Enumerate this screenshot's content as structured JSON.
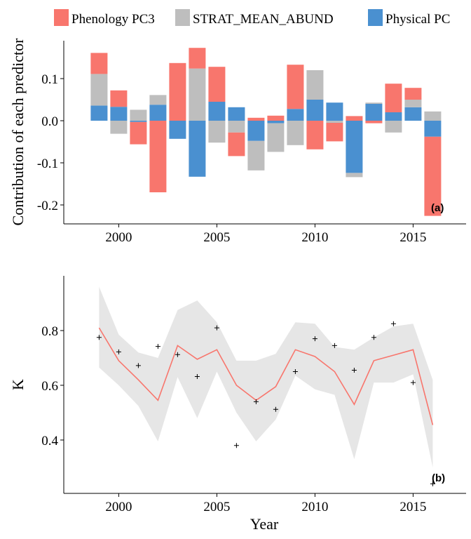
{
  "chart_data": [
    {
      "type": "bar",
      "stacked": true,
      "ylabel": "Contribution of each predictor",
      "xlabel": "",
      "panel_label": "(a)",
      "xlim": [
        1997.2,
        2017.7
      ],
      "ylim": [
        -0.245,
        0.19
      ],
      "x_ticks": [
        2000,
        2005,
        2010,
        2015
      ],
      "y_ticks": [
        -0.2,
        -0.1,
        0.0,
        0.1
      ],
      "y_tick_labels": [
        "-0.2",
        "-0.1",
        "0.0",
        "0.1"
      ],
      "legend": {
        "position": "top"
      },
      "series": [
        {
          "name": "Phenology PC3",
          "color": "#F8766D"
        },
        {
          "name": "STRAT_MEAN_ABUND",
          "color": "#BEBEBE"
        },
        {
          "name": "Physical PC",
          "color": "#4A90D0"
        }
      ],
      "years": [
        1999,
        2000,
        2001,
        2002,
        2003,
        2004,
        2005,
        2006,
        2007,
        2008,
        2009,
        2010,
        2011,
        2012,
        2013,
        2014,
        2015,
        2016
      ],
      "segments": [
        [
          [
            0,
            0.036,
            "Physical PC"
          ],
          [
            0.036,
            0.111,
            "STRAT_MEAN_ABUND"
          ],
          [
            0.111,
            0.161,
            "Phenology PC3"
          ]
        ],
        [
          [
            0,
            0.033,
            "Physical PC"
          ],
          [
            0.033,
            0.072,
            "Phenology PC3"
          ],
          [
            0,
            -0.031,
            "STRAT_MEAN_ABUND"
          ]
        ],
        [
          [
            0,
            0.026,
            "STRAT_MEAN_ABUND"
          ],
          [
            0,
            -0.003,
            "Physical PC"
          ],
          [
            -0.003,
            -0.056,
            "Phenology PC3"
          ]
        ],
        [
          [
            0,
            0.038,
            "Physical PC"
          ],
          [
            0.038,
            0.061,
            "STRAT_MEAN_ABUND"
          ],
          [
            0,
            -0.17,
            "Phenology PC3"
          ]
        ],
        [
          [
            0,
            0.137,
            "Phenology PC3"
          ],
          [
            0,
            -0.043,
            "Physical PC"
          ]
        ],
        [
          [
            0,
            0.124,
            "STRAT_MEAN_ABUND"
          ],
          [
            0.124,
            0.173,
            "Phenology PC3"
          ],
          [
            0,
            -0.133,
            "Physical PC"
          ]
        ],
        [
          [
            0,
            0.045,
            "Physical PC"
          ],
          [
            0.045,
            0.128,
            "Phenology PC3"
          ],
          [
            0,
            -0.052,
            "STRAT_MEAN_ABUND"
          ]
        ],
        [
          [
            0,
            0.032,
            "Physical PC"
          ],
          [
            0,
            -0.028,
            "STRAT_MEAN_ABUND"
          ],
          [
            -0.028,
            -0.084,
            "Phenology PC3"
          ]
        ],
        [
          [
            0,
            0.007,
            "Phenology PC3"
          ],
          [
            0,
            -0.048,
            "Physical PC"
          ],
          [
            -0.048,
            -0.118,
            "STRAT_MEAN_ABUND"
          ]
        ],
        [
          [
            0,
            0.012,
            "Phenology PC3"
          ],
          [
            0,
            -0.006,
            "Physical PC"
          ],
          [
            -0.006,
            -0.074,
            "STRAT_MEAN_ABUND"
          ]
        ],
        [
          [
            0,
            0.028,
            "Physical PC"
          ],
          [
            0.028,
            0.133,
            "Phenology PC3"
          ],
          [
            0,
            -0.058,
            "STRAT_MEAN_ABUND"
          ]
        ],
        [
          [
            0,
            0.05,
            "Physical PC"
          ],
          [
            0.05,
            0.12,
            "STRAT_MEAN_ABUND"
          ],
          [
            0,
            -0.068,
            "Phenology PC3"
          ]
        ],
        [
          [
            0,
            0.043,
            "Physical PC"
          ],
          [
            0,
            -0.005,
            "STRAT_MEAN_ABUND"
          ],
          [
            -0.005,
            -0.049,
            "Phenology PC3"
          ]
        ],
        [
          [
            0,
            0.011,
            "Phenology PC3"
          ],
          [
            0,
            -0.124,
            "Physical PC"
          ],
          [
            -0.124,
            -0.134,
            "STRAT_MEAN_ABUND"
          ]
        ],
        [
          [
            0,
            0.04,
            "Physical PC"
          ],
          [
            0.04,
            0.043,
            "STRAT_MEAN_ABUND"
          ],
          [
            0,
            -0.006,
            "Phenology PC3"
          ]
        ],
        [
          [
            0,
            0.02,
            "Physical PC"
          ],
          [
            0.02,
            0.088,
            "Phenology PC3"
          ],
          [
            0,
            -0.028,
            "STRAT_MEAN_ABUND"
          ]
        ],
        [
          [
            0,
            0.032,
            "Physical PC"
          ],
          [
            0.032,
            0.05,
            "STRAT_MEAN_ABUND"
          ],
          [
            0.05,
            0.078,
            "Phenology PC3"
          ]
        ],
        [
          [
            0,
            0.022,
            "STRAT_MEAN_ABUND"
          ],
          [
            0,
            -0.038,
            "Physical PC"
          ],
          [
            -0.038,
            -0.226,
            "Phenology PC3"
          ]
        ]
      ]
    },
    {
      "type": "line",
      "ylabel": "K",
      "xlabel": "Year",
      "panel_label": "(b)",
      "xlim": [
        1997.2,
        2017.7
      ],
      "ylim": [
        0.205,
        1.0
      ],
      "x_ticks": [
        2000,
        2005,
        2010,
        2015
      ],
      "y_ticks": [
        0.4,
        0.6,
        0.8
      ],
      "y_tick_labels": [
        "0.4",
        "0.6",
        "0.8"
      ],
      "line_color": "#F8766D",
      "band_color": "#E6E6E6",
      "x": [
        1999,
        2000,
        2001,
        2002,
        2003,
        2004,
        2005,
        2006,
        2007,
        2008,
        2009,
        2010,
        2011,
        2012,
        2013,
        2014,
        2015,
        2016
      ],
      "fit": [
        0.81,
        0.69,
        0.62,
        0.545,
        0.745,
        0.695,
        0.73,
        0.6,
        0.545,
        0.595,
        0.73,
        0.705,
        0.65,
        0.53,
        0.69,
        0.71,
        0.73,
        0.455
      ],
      "lower": [
        0.665,
        0.6,
        0.525,
        0.395,
        0.63,
        0.48,
        0.65,
        0.5,
        0.395,
        0.475,
        0.635,
        0.585,
        0.565,
        0.33,
        0.61,
        0.61,
        0.64,
        0.3
      ],
      "upper": [
        0.96,
        0.785,
        0.72,
        0.7,
        0.875,
        0.91,
        0.83,
        0.69,
        0.69,
        0.715,
        0.83,
        0.825,
        0.74,
        0.73,
        0.775,
        0.815,
        0.825,
        0.62
      ],
      "observed": [
        0.775,
        0.722,
        0.672,
        0.742,
        0.712,
        0.632,
        0.81,
        0.38,
        0.54,
        0.512,
        0.65,
        0.77,
        0.745,
        0.655,
        0.775,
        0.825,
        0.61,
        0.24
      ]
    }
  ]
}
